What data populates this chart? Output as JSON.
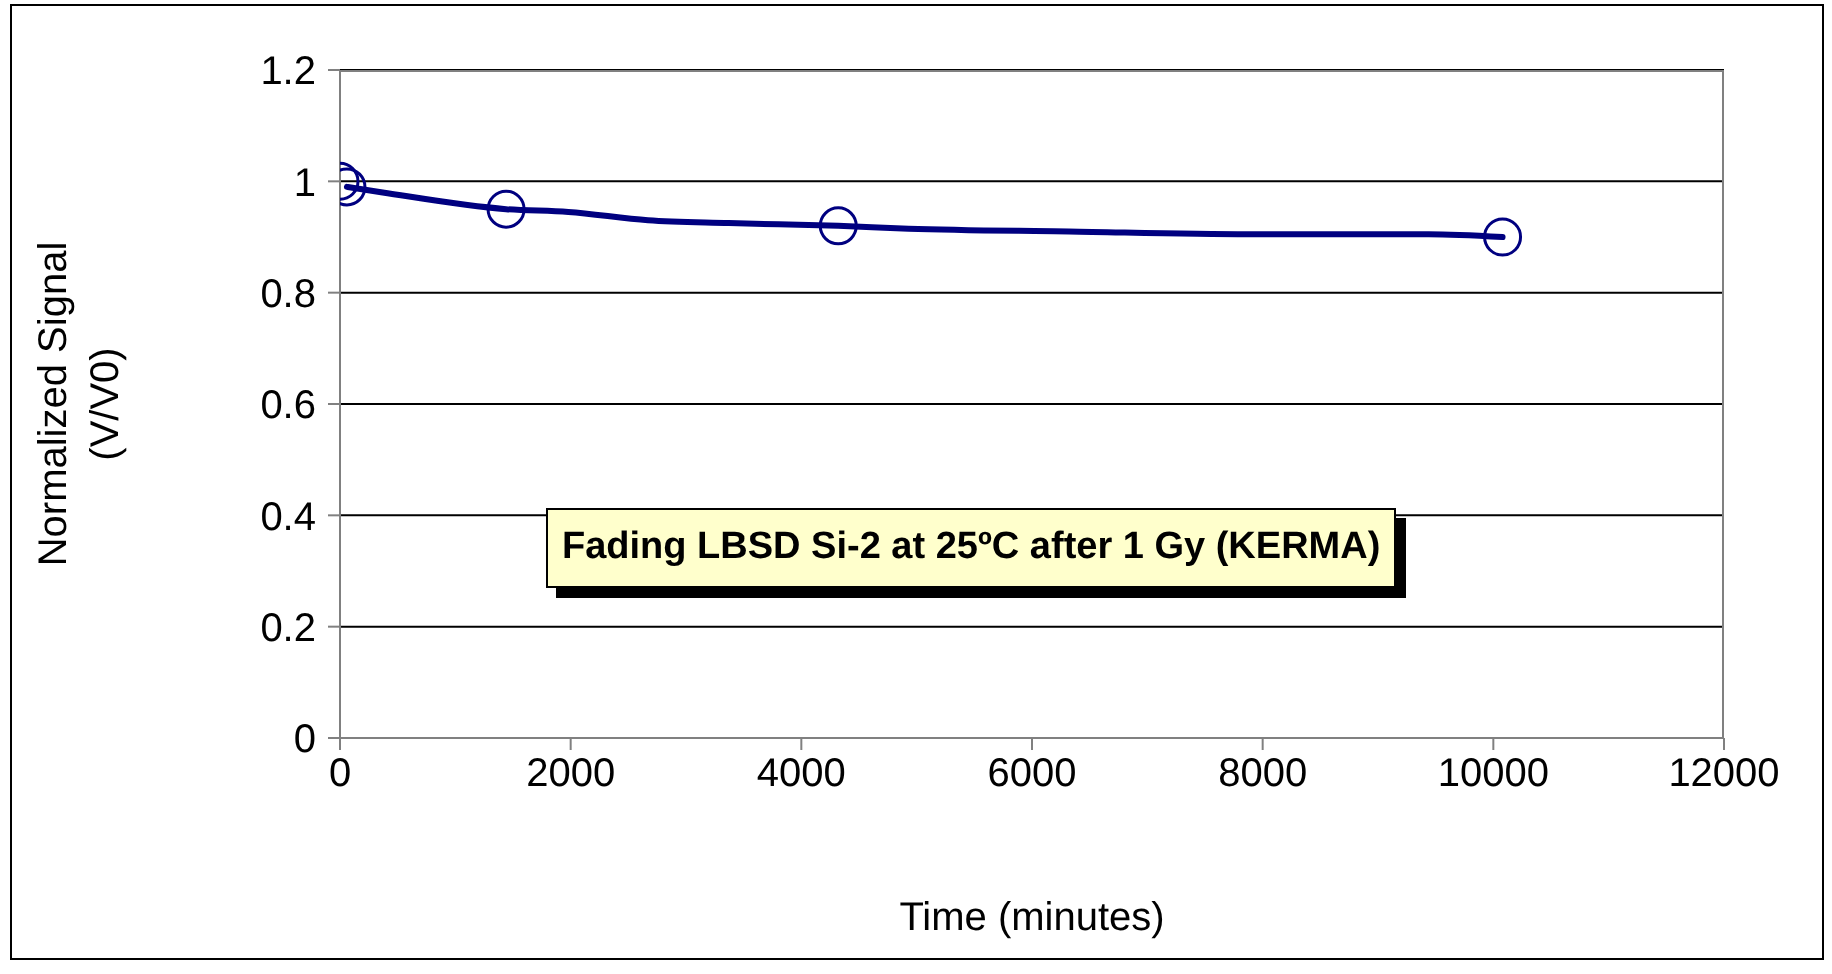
{
  "chart_data": {
    "type": "scatter",
    "xlabel": "Time (minutes)",
    "ylabel": "Normalized Signal (V/V0)",
    "annotations": [
      "Fading LBSD Si-2 at 25ºC after 1 Gy (KERMA)"
    ],
    "series": [
      {
        "color": "#000080",
        "marker": "circle",
        "x": [
          0,
          60,
          1440,
          4320,
          10080
        ],
        "values": [
          1.0,
          0.99,
          0.95,
          0.92,
          0.9
        ]
      },
      {
        "type": "line",
        "color": "#000080",
        "marker": "none",
        "line_style": "solid",
        "x": [
          60,
          370,
          1440,
          1980,
          2670,
          3370,
          4320,
          4930,
          6320,
          7880,
          9440,
          10080
        ],
        "values": [
          0.99,
          0.98,
          0.95,
          0.945,
          0.93,
          0.925,
          0.92,
          0.915,
          0.91,
          0.905,
          0.905,
          0.9
        ]
      }
    ],
    "xlim": [
      0,
      12000
    ],
    "xticks": [
      0,
      2000,
      4000,
      6000,
      8000,
      10000,
      12000
    ],
    "ylim": [
      0,
      1.2
    ],
    "yticks": [
      0,
      0.2,
      0.4,
      0.6,
      0.8,
      1,
      1.2
    ],
    "grid": "y"
  }
}
